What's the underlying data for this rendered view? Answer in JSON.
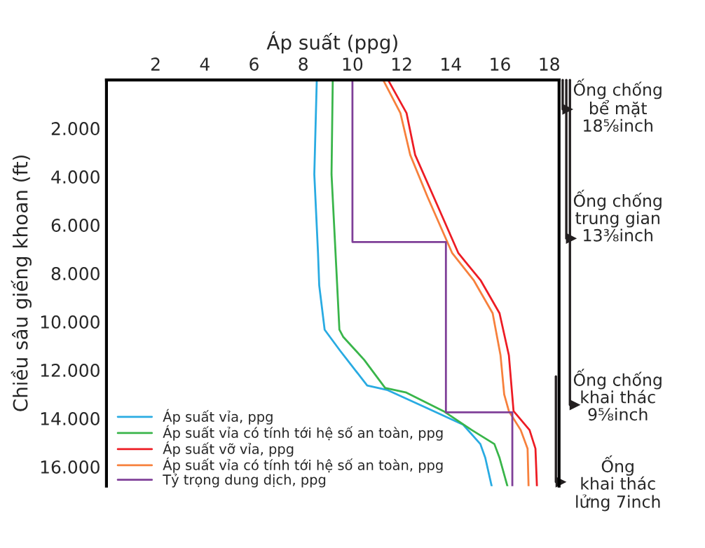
{
  "chart_data": {
    "type": "line",
    "xlabel": "Áp suất (ppg)",
    "ylabel": "Chiều sâu giếng khoan (ft)",
    "xlim": [
      0,
      18.4
    ],
    "xticks": [
      2,
      4,
      6,
      8,
      10,
      12,
      14,
      16,
      18
    ],
    "ylim": [
      16800,
      0
    ],
    "yticks": [
      {
        "value": 2000,
        "label": "2.000"
      },
      {
        "value": 4000,
        "label": "4.000"
      },
      {
        "value": 6000,
        "label": "6.000"
      },
      {
        "value": 8000,
        "label": "8.000"
      },
      {
        "value": 10000,
        "label": "10.000"
      },
      {
        "value": 12000,
        "label": "12.000"
      },
      {
        "value": 14000,
        "label": "14.000"
      },
      {
        "value": 16000,
        "label": "16.000"
      }
    ],
    "grid": false,
    "legend": "bottom left",
    "marker": "none",
    "line_style": "solid",
    "series": [
      {
        "name": "Áp suất vỉa, ppg",
        "color": "#29abe2",
        "x": [
          8.55,
          8.45,
          8.6,
          8.65,
          8.87,
          9.5,
          10.6,
          11.4,
          12.9,
          14.5,
          15.2,
          15.4,
          15.66
        ],
        "values": [
          0,
          3900,
          7150,
          8500,
          10330,
          11200,
          12640,
          12820,
          13510,
          14260,
          15060,
          15630,
          16800
        ]
      },
      {
        "name": "Áp suất vỉa có tính tới hệ số an toàn, ppg",
        "color": "#39b54a",
        "x": [
          9.2,
          9.15,
          9.34,
          9.47,
          9.62,
          10.48,
          11.33,
          12.19,
          13.7,
          14.85,
          15.77,
          15.98,
          16.3
        ],
        "values": [
          0,
          3900,
          7700,
          10330,
          10620,
          11580,
          12740,
          12930,
          13700,
          14480,
          15060,
          15630,
          16800
        ]
      },
      {
        "name": "Áp suất vỡ vỉa, ppg",
        "color": "#ed1c24",
        "x": [
          11.45,
          12.2,
          12.55,
          13.3,
          14.3,
          14.6,
          15.22,
          15.98,
          16.36,
          16.55,
          17.2,
          17.44,
          17.5
        ],
        "values": [
          0,
          1370,
          3100,
          4830,
          7150,
          7530,
          8300,
          9650,
          11390,
          13700,
          14480,
          15250,
          16800
        ]
      },
      {
        "name": "Áp suất vỉa có tính tới hệ số an toàn, ppg",
        "color": "#f7803c",
        "x": [
          11.25,
          11.95,
          12.35,
          13.05,
          14.05,
          14.94,
          15.7,
          16.02,
          16.17,
          16.36,
          16.84,
          17.12,
          17.16
        ],
        "values": [
          0,
          1370,
          3100,
          4830,
          7150,
          8300,
          9650,
          11390,
          13010,
          13700,
          14480,
          15250,
          16800
        ]
      },
      {
        "name": "Tỷ trọng dung dịch, ppg",
        "color": "#7f3f98",
        "x": [
          10,
          10,
          13.8,
          13.8,
          16.5,
          16.5
        ],
        "values": [
          0,
          6700,
          6700,
          13750,
          13750,
          16800
        ]
      }
    ],
    "annotations": [
      "Ống chống\nbể mặt\n18⅝inch",
      "Ống chống\ntrung gian\n13⅜inch",
      "Ống chống\nkhai thác\n9⅝inch",
      "Ống\nkhai thác\nlửng 7inch"
    ]
  }
}
